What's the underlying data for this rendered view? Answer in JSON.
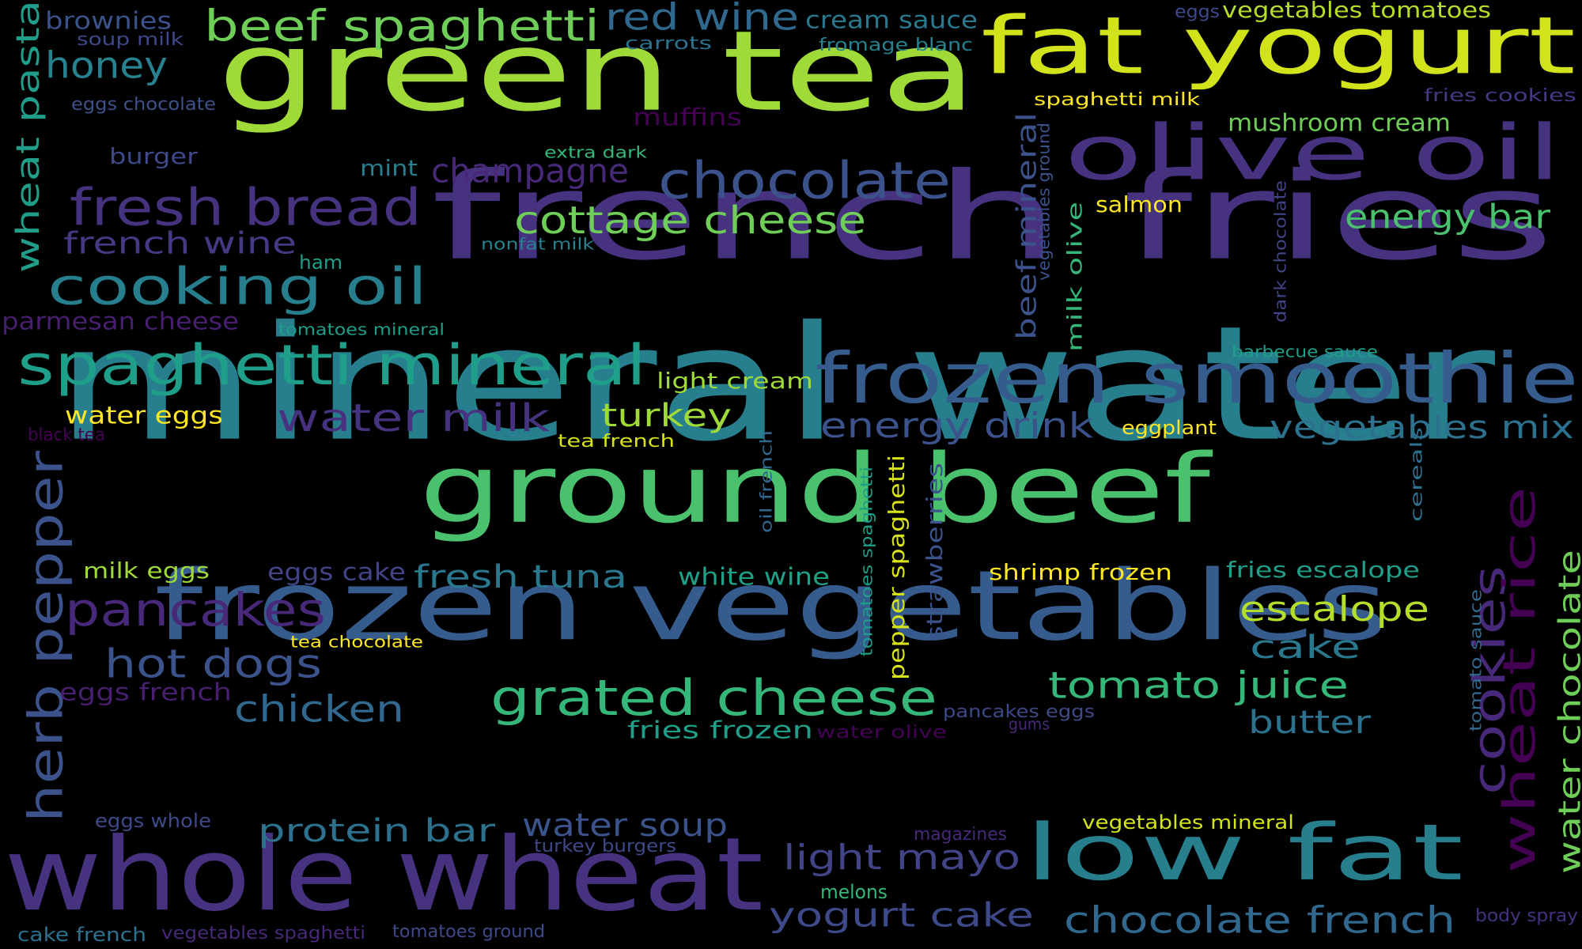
{
  "background": "#000000",
  "palette": {
    "p1": "#440154",
    "p2": "#46327e",
    "p3": "#365c8d",
    "p4": "#277f8e",
    "p5": "#1fa187",
    "p6": "#4ac16d",
    "p7": "#a0da39",
    "p8": "#fde725"
  },
  "words": [
    {
      "text": "mineral water",
      "color": "#277f8e"
    },
    {
      "text": "french fries",
      "color": "#46327e"
    },
    {
      "text": "green tea",
      "color": "#a0da39"
    },
    {
      "text": "frozen vegetables",
      "color": "#365c8d"
    },
    {
      "text": "ground beef",
      "color": "#4ac16d"
    },
    {
      "text": "whole wheat",
      "color": "#46327e"
    },
    {
      "text": "fat yogurt",
      "color": "#d2e21b"
    },
    {
      "text": "olive oil",
      "color": "#46327e"
    },
    {
      "text": "frozen smoothie",
      "color": "#365c8d"
    },
    {
      "text": "low fat",
      "color": "#277f8e"
    },
    {
      "text": "spaghetti mineral",
      "color": "#1f9e89"
    },
    {
      "text": "chocolate",
      "color": "#3b528b"
    },
    {
      "text": "fresh bread",
      "color": "#46327e"
    },
    {
      "text": "cooking oil",
      "color": "#277f8e"
    },
    {
      "text": "pancakes",
      "color": "#482878"
    },
    {
      "text": "grated cheese",
      "color": "#35b779"
    },
    {
      "text": "beef spaghetti",
      "color": "#6ece58"
    },
    {
      "text": "red wine",
      "color": "#31688e"
    },
    {
      "text": "cottage cheese",
      "color": "#6ece58"
    },
    {
      "text": "energy bar",
      "color": "#4ac16d"
    },
    {
      "text": "water milk",
      "color": "#46327e"
    },
    {
      "text": "energy drink",
      "color": "#3b528b"
    },
    {
      "text": "vegetables mix",
      "color": "#2c728e"
    },
    {
      "text": "herb pepper",
      "color": "#3b528b"
    },
    {
      "text": "cookies",
      "color": "#482878"
    },
    {
      "text": "wheat rice",
      "color": "#440154"
    },
    {
      "text": "water chocolate",
      "color": "#6ece58"
    },
    {
      "text": "escalope",
      "color": "#b5de2b"
    },
    {
      "text": "hot dogs",
      "color": "#3b528b"
    },
    {
      "text": "chicken",
      "color": "#31688e"
    },
    {
      "text": "tomato juice",
      "color": "#35b779"
    },
    {
      "text": "fresh tuna",
      "color": "#2a788e"
    },
    {
      "text": "protein bar",
      "color": "#2c728e"
    },
    {
      "text": "water soup",
      "color": "#3b528b"
    },
    {
      "text": "light mayo",
      "color": "#414487"
    },
    {
      "text": "yogurt cake",
      "color": "#3e4989"
    },
    {
      "text": "chocolate french",
      "color": "#31688e"
    },
    {
      "text": "wheat pasta",
      "color": "#1f9e89"
    },
    {
      "text": "honey",
      "color": "#26828e"
    },
    {
      "text": "brownies",
      "color": "#3b528b"
    },
    {
      "text": "soup milk",
      "color": "#3e4989"
    },
    {
      "text": "eggs chocolate",
      "color": "#3b528b"
    },
    {
      "text": "burger",
      "color": "#3e4989"
    },
    {
      "text": "french wine",
      "color": "#443983"
    },
    {
      "text": "mint",
      "color": "#277f8e"
    },
    {
      "text": "ham",
      "color": "#1f9e89"
    },
    {
      "text": "parmesan cheese",
      "color": "#481f70"
    },
    {
      "text": "tomatoes mineral",
      "color": "#1f9e89"
    },
    {
      "text": "water eggs",
      "color": "#fde725"
    },
    {
      "text": "black tea",
      "color": "#440154"
    },
    {
      "text": "turkey",
      "color": "#a0da39"
    },
    {
      "text": "tea french",
      "color": "#d8e219"
    },
    {
      "text": "light cream",
      "color": "#a0da39"
    },
    {
      "text": "champagne",
      "color": "#482878"
    },
    {
      "text": "extra dark",
      "color": "#35b779"
    },
    {
      "text": "nonfat milk",
      "color": "#26828e"
    },
    {
      "text": "muffins",
      "color": "#440154"
    },
    {
      "text": "carrots",
      "color": "#2c728e"
    },
    {
      "text": "cream sauce",
      "color": "#2a788e"
    },
    {
      "text": "fromage blanc",
      "color": "#26828e"
    },
    {
      "text": "eggs",
      "color": "#3e4989"
    },
    {
      "text": "vegetables tomatoes",
      "color": "#b5de2b"
    },
    {
      "text": "spaghetti milk",
      "color": "#fde725"
    },
    {
      "text": "mushroom cream",
      "color": "#6ece58"
    },
    {
      "text": "fries cookies",
      "color": "#443983"
    },
    {
      "text": "salmon",
      "color": "#fde725"
    },
    {
      "text": "beef mineral",
      "color": "#3b528b"
    },
    {
      "text": "vegetables ground",
      "color": "#3b528b"
    },
    {
      "text": "milk olive",
      "color": "#35b779"
    },
    {
      "text": "dark chocolate",
      "color": "#414487"
    },
    {
      "text": "barbecue sauce",
      "color": "#1f9e89"
    },
    {
      "text": "eggplant",
      "color": "#fde725"
    },
    {
      "text": "cereals",
      "color": "#2c728e"
    },
    {
      "text": "tomato sauce",
      "color": "#31688e"
    },
    {
      "text": "oil french",
      "color": "#31688e"
    },
    {
      "text": "tomatoes spaghetti",
      "color": "#1f9e89"
    },
    {
      "text": "pepper spaghetti",
      "color": "#d8e219"
    },
    {
      "text": "strawberries",
      "color": "#3b528b"
    },
    {
      "text": "milk eggs",
      "color": "#a0da39"
    },
    {
      "text": "eggs cake",
      "color": "#414487"
    },
    {
      "text": "white wine",
      "color": "#1fa187"
    },
    {
      "text": "shrimp frozen",
      "color": "#fde725"
    },
    {
      "text": "fries escalope",
      "color": "#1f9e89"
    },
    {
      "text": "cake",
      "color": "#2a788e"
    },
    {
      "text": "butter",
      "color": "#2c728e"
    },
    {
      "text": "tea chocolate",
      "color": "#fde725"
    },
    {
      "text": "eggs french",
      "color": "#481f70"
    },
    {
      "text": "fries frozen",
      "color": "#1f9e89"
    },
    {
      "text": "water olive",
      "color": "#440154"
    },
    {
      "text": "pancakes eggs",
      "color": "#3e4989"
    },
    {
      "text": "gums",
      "color": "#482878"
    },
    {
      "text": "eggs whole",
      "color": "#3e4989"
    },
    {
      "text": "turkey burgers",
      "color": "#3e4989"
    },
    {
      "text": "magazines",
      "color": "#482878"
    },
    {
      "text": "vegetables mineral",
      "color": "#d2e21b"
    },
    {
      "text": "melons",
      "color": "#35b779"
    },
    {
      "text": "body spray",
      "color": "#46327e"
    },
    {
      "text": "cake french",
      "color": "#2c728e"
    },
    {
      "text": "vegetables spaghetti",
      "color": "#482878"
    },
    {
      "text": "tomatoes ground",
      "color": "#3e4989"
    }
  ]
}
